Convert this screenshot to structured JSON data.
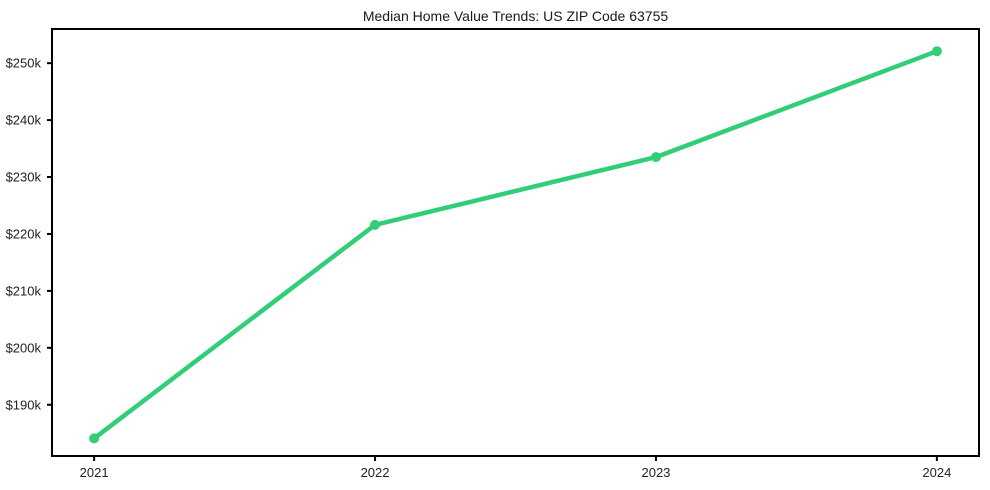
{
  "chart_data": {
    "type": "line",
    "title": "Median Home Value Trends: US ZIP Code 63755",
    "x": [
      2021,
      2022,
      2023,
      2024
    ],
    "x_tick_labels": [
      "2021",
      "2022",
      "2023",
      "2024"
    ],
    "series": [
      {
        "name": "median-home-value",
        "values": [
          184100,
          221600,
          233500,
          252100
        ],
        "color": "#31ce77",
        "marker": "circle"
      }
    ],
    "y_ticks": [
      190000,
      200000,
      210000,
      220000,
      230000,
      240000,
      250000
    ],
    "y_tick_labels": [
      "$190k",
      "$200k",
      "$210k",
      "$220k",
      "$230k",
      "$240k",
      "$250k"
    ],
    "xlim": [
      2020.85,
      2024.15
    ],
    "ylim": [
      181000,
      256000
    ],
    "grid": false,
    "legend": "none",
    "background_color": "#ffffff",
    "axis_color": "#000000",
    "tick_label_color": "#222222",
    "title_color": "#1a1a1a"
  }
}
